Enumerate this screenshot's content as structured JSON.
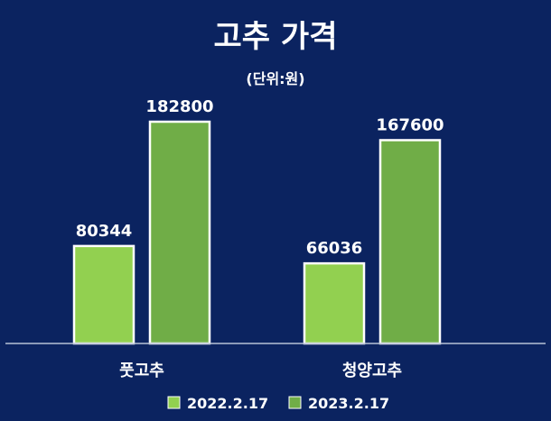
{
  "chart_data": {
    "type": "bar",
    "title": "고추 가격",
    "subtitle": "(단위:원)",
    "categories": [
      "풋고추",
      "청양고추"
    ],
    "series": [
      {
        "name": "2022.2.17",
        "values": [
          80344,
          66036
        ],
        "color": "#92d050"
      },
      {
        "name": "2023.2.17",
        "values": [
          182800,
          167600
        ],
        "color": "#70ad47"
      }
    ],
    "ylim": [
      0,
      200000
    ],
    "grid": false,
    "legend": "bottom",
    "background": "#0b2360",
    "bar_border_color": "#ffffff",
    "text_color": "#ffffff"
  }
}
